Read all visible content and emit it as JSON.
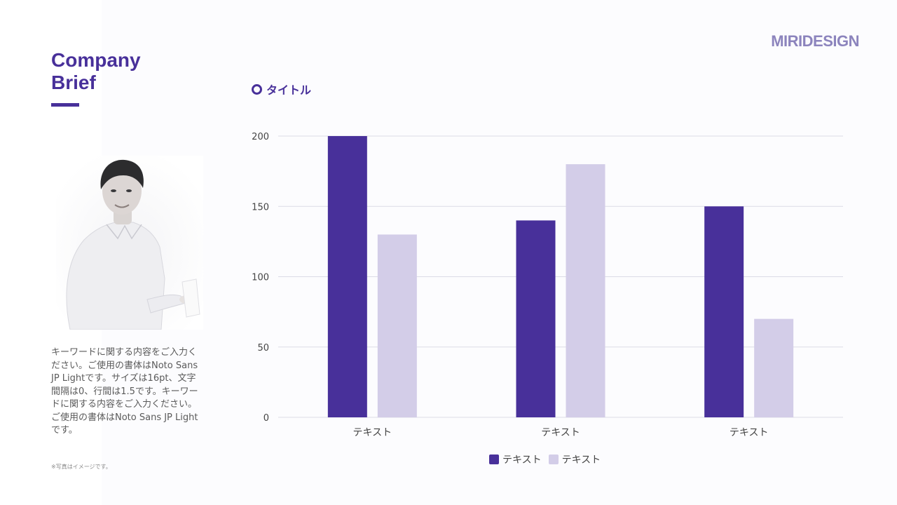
{
  "brand": "MIRIDESIGN",
  "page_title": "Company\nBrief",
  "description": "キーワードに関する内容をご入力ください。ご使用の書体はNoto Sans JP Lightです。サイズは16pt、文字間隔は0、行間は1.5です。キーワードに関する内容をご入力ください。ご使用の書体はNoto Sans JP Lightです。",
  "photo_note": "※写真はイメージです。",
  "chart_heading": "タイトル",
  "colors": {
    "primary": "#48309a",
    "secondary": "#d3cde8",
    "grid": "#dcdce6"
  },
  "chart_data": {
    "type": "bar",
    "categories": [
      "テキスト",
      "テキスト",
      "テキスト"
    ],
    "series": [
      {
        "name": "テキスト",
        "values": [
          200,
          140,
          150
        ],
        "color": "#48309a"
      },
      {
        "name": "テキスト",
        "values": [
          130,
          180,
          70
        ],
        "color": "#d3cde8"
      }
    ],
    "title": "",
    "xlabel": "",
    "ylabel": "",
    "ylim": [
      0,
      200
    ],
    "yticks": [
      0,
      50,
      100,
      150,
      200
    ],
    "grid": true,
    "legend": "bottom-center"
  }
}
